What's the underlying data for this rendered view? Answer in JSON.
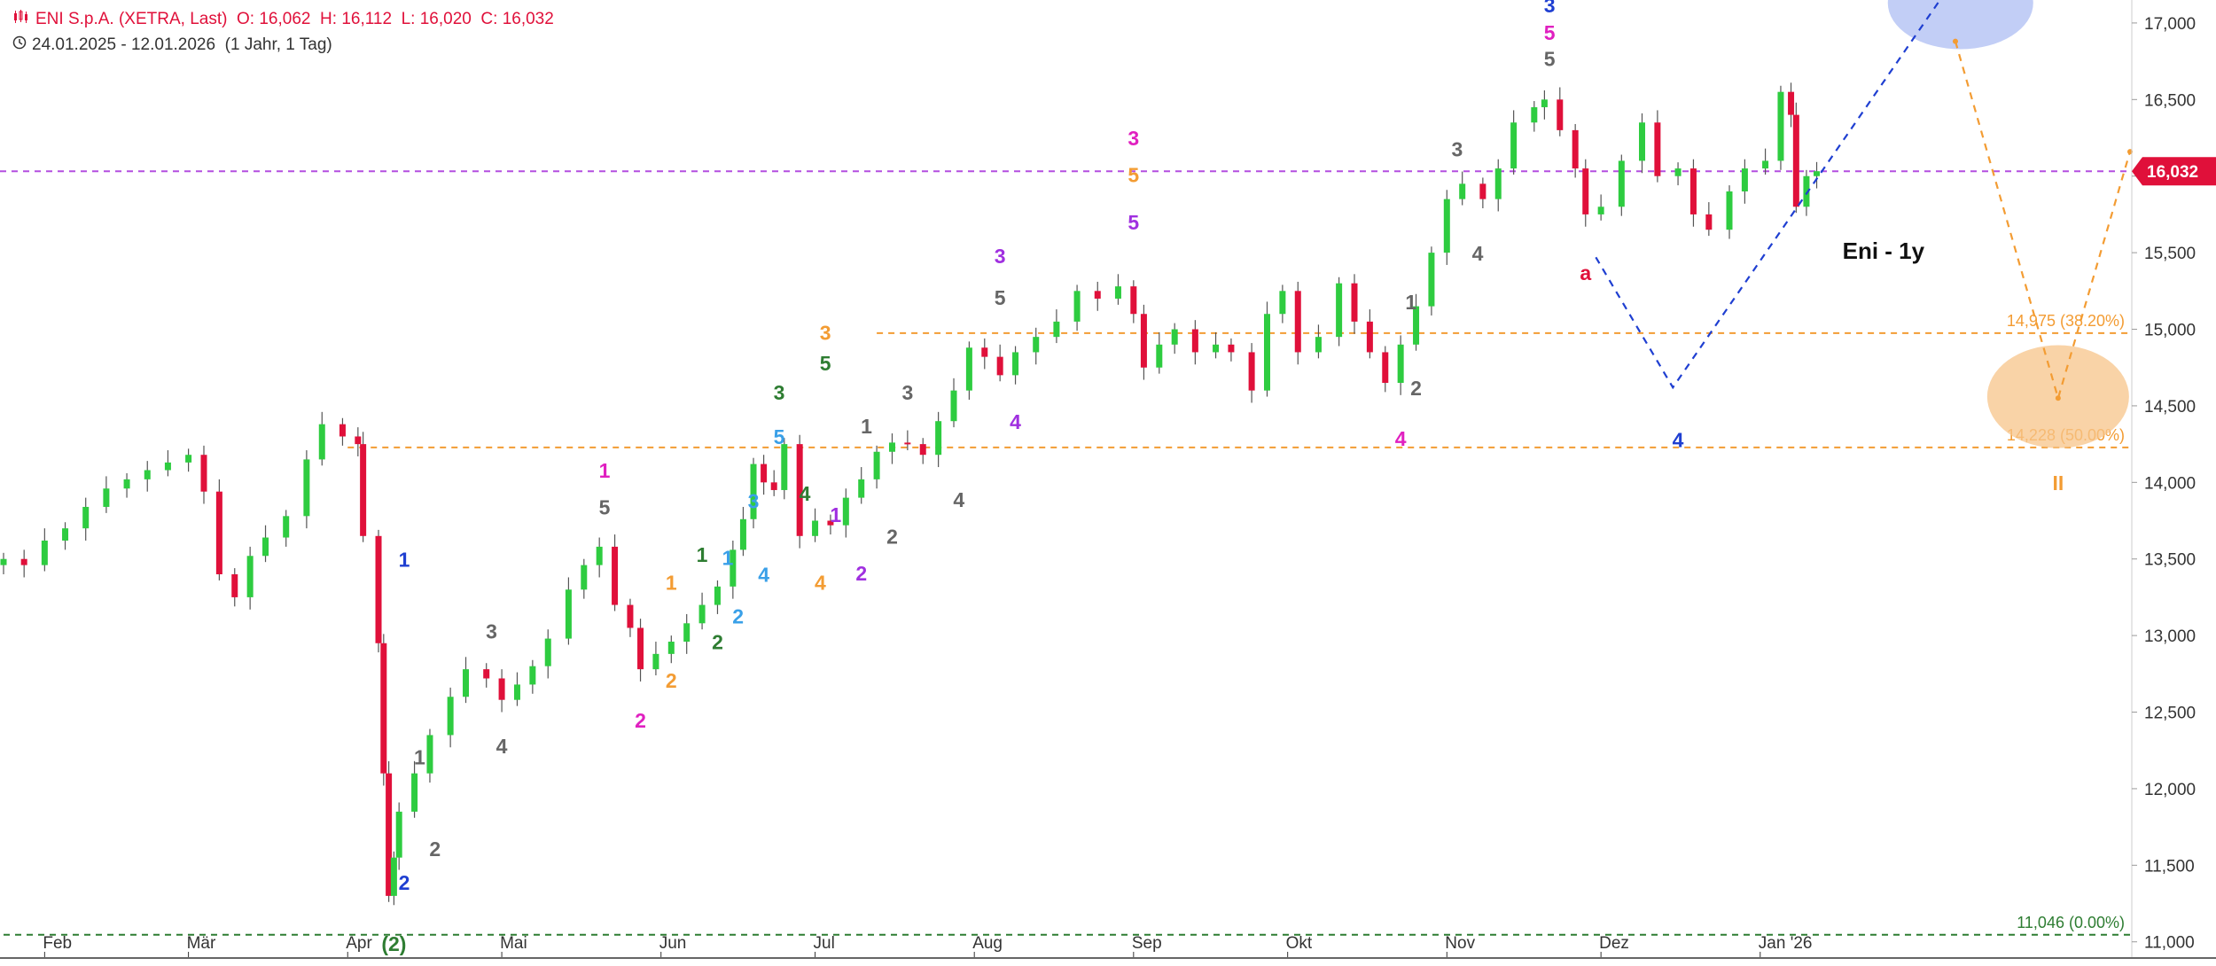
{
  "header": {
    "title": "ENI S.p.A. (XETRA, Last)",
    "o_label": "O:",
    "o": "16,062",
    "h_label": "H:",
    "h": "16,112",
    "l_label": "L:",
    "l": "16,020",
    "c_label": "C:",
    "c": "16,032",
    "range": "24.01.2025 - 12.01.2026",
    "interval": "(1 Jahr, 1 Tag)",
    "chart_icon": "candlestick-icon",
    "clock_icon": "clock-icon"
  },
  "colors": {
    "up": "#2ecc40",
    "down": "#e0103a",
    "fib": "#f39c33",
    "last_line": "#b44fe0",
    "base_line": "#2e7d32",
    "blue_wave": "#1f3fd1",
    "orange_zone": "#f7c48a",
    "blue_zone": "#b7c6f5"
  },
  "chart_data": {
    "type": "candlestick",
    "title": "Eni - 1y",
    "ylim": [
      10900,
      17150
    ],
    "y_ticks": [
      {
        "v": 11000,
        "label": "11,000"
      },
      {
        "v": 11500,
        "label": "11,500"
      },
      {
        "v": 12000,
        "label": "12,000"
      },
      {
        "v": 12500,
        "label": "12,500"
      },
      {
        "v": 13000,
        "label": "13,000"
      },
      {
        "v": 13500,
        "label": "13,500"
      },
      {
        "v": 14000,
        "label": "14,000"
      },
      {
        "v": 14500,
        "label": "14,500"
      },
      {
        "v": 15000,
        "label": "15,000"
      },
      {
        "v": 15500,
        "label": "15,500"
      },
      {
        "v": 16000,
        "label": "16,000"
      },
      {
        "v": 16500,
        "label": "16,500"
      },
      {
        "v": 17000,
        "label": "17,000"
      }
    ],
    "x_ticks": [
      {
        "date": "2025-02-01",
        "label": "Feb"
      },
      {
        "date": "2025-03-01",
        "label": "Mär"
      },
      {
        "date": "2025-04-01",
        "label": "Apr"
      },
      {
        "date": "2025-05-01",
        "label": "Mai"
      },
      {
        "date": "2025-06-01",
        "label": "Jun"
      },
      {
        "date": "2025-07-01",
        "label": "Jul"
      },
      {
        "date": "2025-08-01",
        "label": "Aug"
      },
      {
        "date": "2025-09-01",
        "label": "Sep"
      },
      {
        "date": "2025-10-01",
        "label": "Okt"
      },
      {
        "date": "2025-11-01",
        "label": "Nov"
      },
      {
        "date": "2025-12-01",
        "label": "Dez"
      },
      {
        "date": "2026-01-01",
        "label": "Jan '26"
      }
    ],
    "x_range": [
      "2025-01-24",
      "2026-03-14"
    ],
    "last_price": {
      "value": 16032,
      "label": "16,032"
    },
    "fib_levels": [
      {
        "value": 14975,
        "label": "14,975 (38.20%)",
        "from": "2025-07-13"
      },
      {
        "value": 14228,
        "label": "14,228 (50.00%)",
        "from": "2025-04-01"
      },
      {
        "value": 11046,
        "label": "11,046 (0.00%)",
        "from": "2025-01-24"
      }
    ],
    "closes": [
      [
        "2025-01-24",
        13500
      ],
      [
        "2025-01-28",
        13460
      ],
      [
        "2025-02-01",
        13620
      ],
      [
        "2025-02-05",
        13700
      ],
      [
        "2025-02-09",
        13840
      ],
      [
        "2025-02-13",
        13960
      ],
      [
        "2025-02-17",
        14020
      ],
      [
        "2025-02-21",
        14080
      ],
      [
        "2025-02-25",
        14130
      ],
      [
        "2025-03-01",
        14180
      ],
      [
        "2025-03-04",
        13940
      ],
      [
        "2025-03-07",
        13400
      ],
      [
        "2025-03-10",
        13250
      ],
      [
        "2025-03-13",
        13520
      ],
      [
        "2025-03-16",
        13640
      ],
      [
        "2025-03-20",
        13780
      ],
      [
        "2025-03-24",
        14150
      ],
      [
        "2025-03-27",
        14380
      ],
      [
        "2025-03-31",
        14300
      ],
      [
        "2025-04-03",
        14250
      ],
      [
        "2025-04-04",
        13650
      ],
      [
        "2025-04-07",
        12950
      ],
      [
        "2025-04-08",
        12100
      ],
      [
        "2025-04-09",
        11300
      ],
      [
        "2025-04-10",
        11550
      ],
      [
        "2025-04-11",
        11850
      ],
      [
        "2025-04-14",
        12100
      ],
      [
        "2025-04-17",
        12350
      ],
      [
        "2025-04-21",
        12600
      ],
      [
        "2025-04-24",
        12780
      ],
      [
        "2025-04-28",
        12720
      ],
      [
        "2025-05-01",
        12580
      ],
      [
        "2025-05-04",
        12680
      ],
      [
        "2025-05-07",
        12800
      ],
      [
        "2025-05-10",
        12980
      ],
      [
        "2025-05-14",
        13300
      ],
      [
        "2025-05-17",
        13460
      ],
      [
        "2025-05-20",
        13580
      ],
      [
        "2025-05-23",
        13200
      ],
      [
        "2025-05-26",
        13050
      ],
      [
        "2025-05-28",
        12780
      ],
      [
        "2025-05-31",
        12880
      ],
      [
        "2025-06-03",
        12960
      ],
      [
        "2025-06-06",
        13080
      ],
      [
        "2025-06-09",
        13200
      ],
      [
        "2025-06-12",
        13320
      ],
      [
        "2025-06-15",
        13560
      ],
      [
        "2025-06-17",
        13760
      ],
      [
        "2025-06-19",
        14120
      ],
      [
        "2025-06-21",
        14000
      ],
      [
        "2025-06-23",
        13950
      ],
      [
        "2025-06-25",
        14250
      ],
      [
        "2025-06-28",
        13650
      ],
      [
        "2025-07-01",
        13750
      ],
      [
        "2025-07-04",
        13720
      ],
      [
        "2025-07-07",
        13900
      ],
      [
        "2025-07-10",
        14020
      ],
      [
        "2025-07-13",
        14200
      ],
      [
        "2025-07-16",
        14260
      ],
      [
        "2025-07-19",
        14250
      ],
      [
        "2025-07-22",
        14180
      ],
      [
        "2025-07-25",
        14400
      ],
      [
        "2025-07-28",
        14600
      ],
      [
        "2025-07-31",
        14880
      ],
      [
        "2025-08-03",
        14820
      ],
      [
        "2025-08-06",
        14700
      ],
      [
        "2025-08-09",
        14850
      ],
      [
        "2025-08-13",
        14950
      ],
      [
        "2025-08-17",
        15050
      ],
      [
        "2025-08-21",
        15250
      ],
      [
        "2025-08-25",
        15200
      ],
      [
        "2025-08-29",
        15280
      ],
      [
        "2025-09-01",
        15100
      ],
      [
        "2025-09-03",
        14750
      ],
      [
        "2025-09-06",
        14900
      ],
      [
        "2025-09-09",
        15000
      ],
      [
        "2025-09-13",
        14850
      ],
      [
        "2025-09-17",
        14900
      ],
      [
        "2025-09-20",
        14850
      ],
      [
        "2025-09-24",
        14600
      ],
      [
        "2025-09-27",
        15100
      ],
      [
        "2025-09-30",
        15250
      ],
      [
        "2025-10-03",
        14850
      ],
      [
        "2025-10-07",
        14950
      ],
      [
        "2025-10-11",
        15300
      ],
      [
        "2025-10-14",
        15050
      ],
      [
        "2025-10-17",
        14850
      ],
      [
        "2025-10-20",
        14650
      ],
      [
        "2025-10-23",
        14900
      ],
      [
        "2025-10-26",
        15150
      ],
      [
        "2025-10-29",
        15500
      ],
      [
        "2025-11-01",
        15850
      ],
      [
        "2025-11-04",
        15950
      ],
      [
        "2025-11-08",
        15850
      ],
      [
        "2025-11-11",
        16050
      ],
      [
        "2025-11-14",
        16350
      ],
      [
        "2025-11-18",
        16450
      ],
      [
        "2025-11-20",
        16500
      ],
      [
        "2025-11-23",
        16300
      ],
      [
        "2025-11-26",
        16050
      ],
      [
        "2025-11-28",
        15750
      ],
      [
        "2025-12-01",
        15800
      ],
      [
        "2025-12-05",
        16100
      ],
      [
        "2025-12-09",
        16350
      ],
      [
        "2025-12-12",
        16000
      ],
      [
        "2025-12-16",
        16050
      ],
      [
        "2025-12-19",
        15750
      ],
      [
        "2025-12-22",
        15650
      ],
      [
        "2025-12-26",
        15900
      ],
      [
        "2025-12-29",
        16050
      ],
      [
        "2026-01-02",
        16100
      ],
      [
        "2026-01-05",
        16550
      ],
      [
        "2026-01-07",
        16400
      ],
      [
        "2026-01-08",
        15800
      ],
      [
        "2026-01-10",
        16000
      ],
      [
        "2026-01-12",
        16032
      ]
    ],
    "wave_labels": [
      {
        "text": "1",
        "date": "2025-04-12",
        "v": 13450,
        "color": "#1f3fd1"
      },
      {
        "text": "2",
        "date": "2025-04-12",
        "v": 11340,
        "color": "#1f3fd1"
      },
      {
        "text": "(2)",
        "date": "2025-04-10",
        "v": 10940,
        "color": "#2e7d32"
      },
      {
        "text": "1",
        "date": "2025-04-15",
        "v": 12160,
        "color": "#666666"
      },
      {
        "text": "2",
        "date": "2025-04-18",
        "v": 11560,
        "color": "#666666"
      },
      {
        "text": "3",
        "date": "2025-04-29",
        "v": 12980,
        "color": "#666666"
      },
      {
        "text": "4",
        "date": "2025-05-01",
        "v": 12230,
        "color": "#666666"
      },
      {
        "text": "5",
        "date": "2025-05-21",
        "v": 13790,
        "color": "#666666"
      },
      {
        "text": "1",
        "date": "2025-05-21",
        "v": 14030,
        "color": "#e020c0"
      },
      {
        "text": "2",
        "date": "2025-05-28",
        "v": 12400,
        "color": "#e020c0"
      },
      {
        "text": "1",
        "date": "2025-06-03",
        "v": 13300,
        "color": "#f39c33"
      },
      {
        "text": "2",
        "date": "2025-06-03",
        "v": 12660,
        "color": "#f39c33"
      },
      {
        "text": "1",
        "date": "2025-06-09",
        "v": 13480,
        "color": "#2e7d32"
      },
      {
        "text": "2",
        "date": "2025-06-12",
        "v": 12910,
        "color": "#2e7d32"
      },
      {
        "text": "1",
        "date": "2025-06-14",
        "v": 13460,
        "color": "#3aa0e8"
      },
      {
        "text": "2",
        "date": "2025-06-16",
        "v": 13080,
        "color": "#3aa0e8"
      },
      {
        "text": "3",
        "date": "2025-06-19",
        "v": 13830,
        "color": "#3aa0e8"
      },
      {
        "text": "4",
        "date": "2025-06-21",
        "v": 13350,
        "color": "#3aa0e8"
      },
      {
        "text": "5",
        "date": "2025-06-24",
        "v": 14250,
        "color": "#3aa0e8"
      },
      {
        "text": "3",
        "date": "2025-06-24",
        "v": 14540,
        "color": "#2e7d32"
      },
      {
        "text": "4",
        "date": "2025-06-29",
        "v": 13880,
        "color": "#2e7d32"
      },
      {
        "text": "5",
        "date": "2025-07-03",
        "v": 14730,
        "color": "#2e7d32"
      },
      {
        "text": "3",
        "date": "2025-07-03",
        "v": 14930,
        "color": "#f39c33"
      },
      {
        "text": "4",
        "date": "2025-07-02",
        "v": 13300,
        "color": "#f39c33"
      },
      {
        "text": "1",
        "date": "2025-07-05",
        "v": 13740,
        "color": "#a030e0"
      },
      {
        "text": "2",
        "date": "2025-07-10",
        "v": 13360,
        "color": "#a030e0"
      },
      {
        "text": "1",
        "date": "2025-07-11",
        "v": 14320,
        "color": "#666666"
      },
      {
        "text": "2",
        "date": "2025-07-16",
        "v": 13600,
        "color": "#666666"
      },
      {
        "text": "3",
        "date": "2025-07-19",
        "v": 14540,
        "color": "#666666"
      },
      {
        "text": "4",
        "date": "2025-07-29",
        "v": 13840,
        "color": "#666666"
      },
      {
        "text": "5",
        "date": "2025-08-06",
        "v": 15160,
        "color": "#666666"
      },
      {
        "text": "3",
        "date": "2025-08-06",
        "v": 15430,
        "color": "#a030e0"
      },
      {
        "text": "4",
        "date": "2025-08-09",
        "v": 14350,
        "color": "#a030e0"
      },
      {
        "text": "3",
        "date": "2025-09-01",
        "v": 16200,
        "color": "#e020c0"
      },
      {
        "text": "5",
        "date": "2025-09-01",
        "v": 15960,
        "color": "#f39c33"
      },
      {
        "text": "5",
        "date": "2025-09-01",
        "v": 15650,
        "color": "#a030e0"
      },
      {
        "text": "1",
        "date": "2025-10-25",
        "v": 15130,
        "color": "#666666"
      },
      {
        "text": "2",
        "date": "2025-10-26",
        "v": 14570,
        "color": "#666666"
      },
      {
        "text": "4",
        "date": "2025-10-23",
        "v": 14240,
        "color": "#e020c0"
      },
      {
        "text": "3",
        "date": "2025-11-03",
        "v": 16130,
        "color": "#666666"
      },
      {
        "text": "4",
        "date": "2025-11-07",
        "v": 15450,
        "color": "#666666"
      },
      {
        "text": "5",
        "date": "2025-11-21",
        "v": 16720,
        "color": "#666666"
      },
      {
        "text": "5",
        "date": "2025-11-21",
        "v": 16890,
        "color": "#e020c0"
      },
      {
        "text": "3",
        "date": "2025-11-21",
        "v": 17070,
        "color": "#1f3fd1"
      },
      {
        "text": "a",
        "date": "2025-11-28",
        "v": 15320,
        "color": "#e0103a"
      },
      {
        "text": "4",
        "date": "2025-12-16",
        "v": 14230,
        "color": "#1f3fd1"
      },
      {
        "text": "II",
        "date": "2026-02-28",
        "v": 13950,
        "color": "#f39c33"
      }
    ],
    "blue_projection": [
      [
        "2025-11-30",
        15470
      ],
      [
        "2025-12-15",
        14620
      ],
      [
        "2026-02-05",
        17150
      ]
    ],
    "orange_projection": [
      [
        "2026-02-08",
        16880
      ],
      [
        "2026-02-28",
        14550
      ],
      [
        "2026-03-14",
        16160
      ]
    ],
    "orange_zone": {
      "date": "2026-02-28",
      "v": 14560
    },
    "blue_zone": {
      "date": "2026-02-09",
      "v": 17130
    },
    "annotation": {
      "text": "Eni - 1y",
      "date": "2026-01-25",
      "v": 15460
    }
  }
}
